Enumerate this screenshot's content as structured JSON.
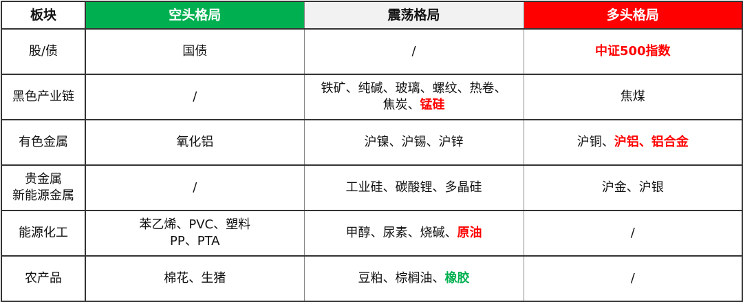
{
  "colors": {
    "bear": "#00B050",
    "range": "#F2F2F2",
    "bull": "#FF0000",
    "highlight_red": "#FF0000",
    "highlight_green": "#00B050"
  },
  "header": [
    {
      "text": "板块",
      "bg": "#FFFFFF",
      "color": "#111111"
    },
    {
      "text": "空头格局",
      "bg": "#00B050",
      "color": "#FFFFFF"
    },
    {
      "text": "震荡格局",
      "bg": "#F2F2F2",
      "color": "#111111"
    },
    {
      "text": "多头格局",
      "bg": "#FF0000",
      "color": "#FFFFFF"
    }
  ],
  "rows": [
    {
      "sector": [
        "股/债"
      ],
      "cells": [
        [
          [
            {
              "t": "国债"
            }
          ]
        ],
        [
          [
            {
              "t": "/"
            }
          ]
        ],
        [
          [
            {
              "t": "中证500指数",
              "c": "red"
            }
          ]
        ]
      ]
    },
    {
      "sector": [
        "黑色产业链"
      ],
      "cells": [
        [
          [
            {
              "t": "/"
            }
          ]
        ],
        [
          [
            {
              "t": "铁矿、纯碱、玻璃、螺纹、热卷、"
            }
          ],
          [
            {
              "t": "焦炭、"
            },
            {
              "t": "锰硅",
              "c": "red"
            }
          ]
        ],
        [
          [
            {
              "t": "焦煤"
            }
          ]
        ]
      ]
    },
    {
      "sector": [
        "有色金属"
      ],
      "cells": [
        [
          [
            {
              "t": "氧化铝"
            }
          ]
        ],
        [
          [
            {
              "t": "沪镍、沪锡、沪锌"
            }
          ]
        ],
        [
          [
            {
              "t": "沪铜、"
            },
            {
              "t": "沪铝、铝合金",
              "c": "red"
            }
          ]
        ]
      ]
    },
    {
      "sector": [
        "贵金属",
        "新能源金属"
      ],
      "cells": [
        [
          [
            {
              "t": "/"
            }
          ]
        ],
        [
          [
            {
              "t": "工业硅、碳酸锂、多晶硅"
            }
          ]
        ],
        [
          [
            {
              "t": "沪金、沪银"
            }
          ]
        ]
      ]
    },
    {
      "sector": [
        "能源化工"
      ],
      "cells": [
        [
          [
            {
              "t": "苯乙烯、PVC、塑料"
            }
          ],
          [
            {
              "t": "PP、PTA"
            }
          ]
        ],
        [
          [
            {
              "t": "甲醇、尿素、烧碱、"
            },
            {
              "t": "原油",
              "c": "red"
            }
          ]
        ],
        [
          [
            {
              "t": "/"
            }
          ]
        ]
      ]
    },
    {
      "sector": [
        "农产品"
      ],
      "cells": [
        [
          [
            {
              "t": "棉花、生猪"
            }
          ]
        ],
        [
          [
            {
              "t": "豆粕、棕榈油、"
            },
            {
              "t": "橡胶",
              "c": "green"
            }
          ]
        ],
        [
          [
            {
              "t": "/"
            }
          ]
        ]
      ]
    }
  ]
}
